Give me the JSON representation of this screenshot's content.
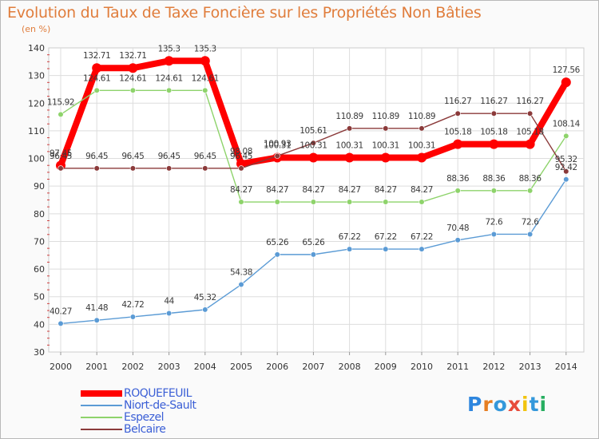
{
  "title": "Evolution du Taux de Taxe Foncière sur les Propriétés Non Bâties",
  "unit_label": "(en %)",
  "logo": {
    "letters": [
      "P",
      "r",
      "o",
      "x",
      "i",
      "t",
      "i"
    ],
    "colors": [
      "#2e86de",
      "#e67e22",
      "#3498db",
      "#e74c3c",
      "#f1c40f",
      "#3498db",
      "#27ae60"
    ]
  },
  "chart_data": {
    "type": "line",
    "title": "Evolution du Taux de Taxe Foncière sur les Propriétés Non Bâties",
    "ylabel": "(en %)",
    "xlabel": "",
    "ylim": [
      30,
      140
    ],
    "yticks": [
      "30",
      "40",
      "50",
      "60",
      "70",
      "80",
      "90",
      "100",
      "110",
      "120",
      "130",
      "140"
    ],
    "categories": [
      "2000",
      "2001",
      "2002",
      "2003",
      "2004",
      "2005",
      "2006",
      "2007",
      "2008",
      "2009",
      "2010",
      "2011",
      "2012",
      "2013",
      "2014"
    ],
    "series": [
      {
        "name": "ROQUEFEUIL",
        "color": "#ff0000",
        "values": [
          97.45,
          132.71,
          132.71,
          135.3,
          135.3,
          98.08,
          100.31,
          100.31,
          100.31,
          100.31,
          100.31,
          105.18,
          105.18,
          105.18,
          127.56
        ],
        "labels": [
          "97.45",
          "132.71",
          "132.71",
          "135.3",
          "135.3",
          "98.08",
          "100.31",
          "100.31",
          "100.31",
          "100.31",
          "100.31",
          "105.18",
          "105.18",
          "105.18",
          "127.56"
        ]
      },
      {
        "name": "Niort-de-Sault",
        "color": "#5b9bd5",
        "values": [
          40.27,
          41.48,
          42.72,
          44,
          45.32,
          54.38,
          65.26,
          65.26,
          67.22,
          67.22,
          67.22,
          70.48,
          72.6,
          72.6,
          92.42
        ],
        "labels": [
          "40.27",
          "41.48",
          "42.72",
          "44",
          "45.32",
          "54.38",
          "65.26",
          "65.26",
          "67.22",
          "67.22",
          "67.22",
          "70.48",
          "72.6",
          "72.6",
          "92.42"
        ]
      },
      {
        "name": "Espezel",
        "color": "#8ed36b",
        "values": [
          115.92,
          124.61,
          124.61,
          124.61,
          124.61,
          84.27,
          84.27,
          84.27,
          84.27,
          84.27,
          84.27,
          88.36,
          88.36,
          88.36,
          108.14
        ],
        "labels": [
          "115.92",
          "124.61",
          "124.61",
          "124.61",
          "124.61",
          "84.27",
          "84.27",
          "84.27",
          "84.27",
          "84.27",
          "84.27",
          "88.36",
          "88.36",
          "88.36",
          "108.14"
        ]
      },
      {
        "name": "Belcaire",
        "color": "#8b3a3a",
        "values": [
          96.45,
          96.45,
          96.45,
          96.45,
          96.45,
          96.45,
          100.93,
          105.61,
          110.89,
          110.89,
          110.89,
          116.27,
          116.27,
          116.27,
          95.32
        ],
        "labels": [
          "96.45",
          "96.45",
          "96.45",
          "96.45",
          "96.45",
          "96.45",
          "100.93",
          "105.61",
          "110.89",
          "110.89",
          "110.89",
          "116.27",
          "116.27",
          "116.27",
          "95.32"
        ]
      }
    ],
    "legend_position": "bottom-left"
  }
}
